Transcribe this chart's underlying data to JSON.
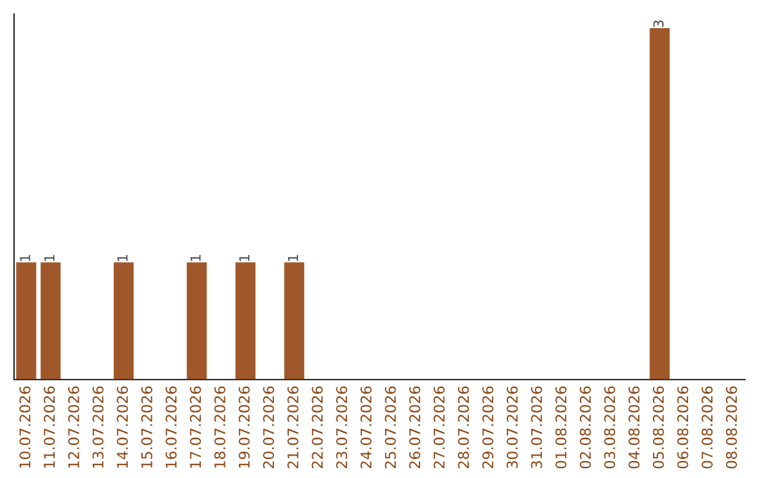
{
  "chart_data": {
    "type": "bar",
    "categories": [
      "10.07.2026",
      "11.07.2026",
      "12.07.2026",
      "13.07.2026",
      "14.07.2026",
      "15.07.2026",
      "16.07.2026",
      "17.07.2026",
      "18.07.2026",
      "19.07.2026",
      "20.07.2026",
      "21.07.2026",
      "22.07.2026",
      "23.07.2026",
      "24.07.2026",
      "25.07.2026",
      "26.07.2026",
      "27.07.2026",
      "28.07.2026",
      "29.07.2026",
      "30.07.2026",
      "31.07.2026",
      "01.08.2026",
      "02.08.2026",
      "03.08.2026",
      "04.08.2026",
      "05.08.2026",
      "06.08.2026",
      "07.08.2026",
      "08.08.2026"
    ],
    "values": [
      1,
      1,
      0,
      0,
      1,
      0,
      0,
      1,
      0,
      1,
      0,
      1,
      0,
      0,
      0,
      0,
      0,
      0,
      0,
      0,
      0,
      0,
      0,
      0,
      0,
      0,
      3,
      0,
      0,
      0
    ],
    "color": "#a0582a",
    "value_labels": [
      "1",
      "1",
      null,
      null,
      "1",
      null,
      null,
      "1",
      null,
      "1",
      null,
      "1",
      null,
      null,
      null,
      null,
      null,
      null,
      null,
      null,
      null,
      null,
      null,
      null,
      null,
      null,
      "3",
      null,
      null,
      null
    ],
    "tick_labels": "x",
    "grid": false,
    "legend": false
  }
}
